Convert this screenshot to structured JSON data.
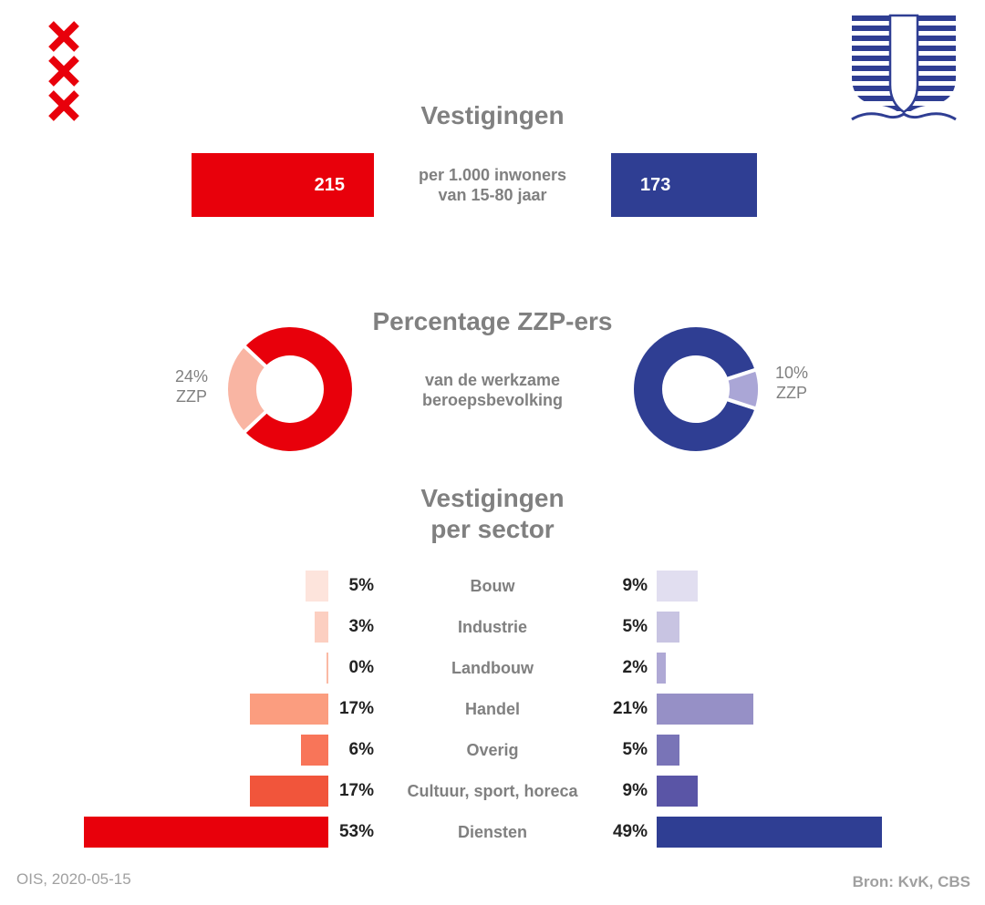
{
  "logos": {
    "left": {
      "name": "amsterdam-crosses",
      "color": "#e8000b"
    },
    "right": {
      "name": "leiden-shield-waves",
      "color": "#2f3e93"
    }
  },
  "colors": {
    "red": "#e8000b",
    "blue": "#2f3e93",
    "grey_text": "#808080"
  },
  "section1": {
    "title": "Vestigingen",
    "subtitle_line1": "per 1.000 inwoners",
    "subtitle_line2": "van 15-80 jaar",
    "left_value": "215",
    "right_value": "173"
  },
  "section2": {
    "title": "Percentage ZZP-ers",
    "subtitle_line1": "van de werkzame",
    "subtitle_line2": "beroepsbevolking",
    "left_pct_label": "24%",
    "left_zzp_label": "ZZP",
    "right_pct_label": "10%",
    "right_zzp_label": "ZZP"
  },
  "section3": {
    "title_line1": "Vestigingen",
    "title_line2": "per sector"
  },
  "chart_data": [
    {
      "type": "bar",
      "title": "Vestigingen",
      "categories": [
        "per 1.000 inwoners van 15-80 jaar"
      ],
      "series": [
        {
          "values": [
            215
          ],
          "color": "#e8000b"
        },
        {
          "values": [
            173
          ],
          "color": "#2f3e93"
        }
      ]
    },
    {
      "type": "pie",
      "title": "Percentage ZZP-ers",
      "donuts": [
        {
          "zzp_pct": 24,
          "color": "#e8000b",
          "zzp_color": "#f9b5a3"
        },
        {
          "zzp_pct": 10,
          "color": "#2f3e93",
          "zzp_color": "#aaa6d6"
        }
      ]
    },
    {
      "type": "bar",
      "title": "Vestigingen per sector",
      "categories": [
        "Bouw",
        "Industrie",
        "Landbouw",
        "Handel",
        "Overig",
        "Cultuur, sport, horeca",
        "Diensten"
      ],
      "series": [
        {
          "values": [
            5,
            3,
            0,
            17,
            6,
            17,
            53
          ]
        },
        {
          "values": [
            9,
            5,
            2,
            21,
            5,
            9,
            49
          ]
        }
      ],
      "value_labels_left": [
        "5%",
        "3%",
        "0%",
        "17%",
        "6%",
        "17%",
        "53%"
      ],
      "value_labels_right": [
        "9%",
        "5%",
        "2%",
        "21%",
        "5%",
        "9%",
        "49%"
      ],
      "colors_left": [
        "#fde4dc",
        "#fccfc1",
        "#fbbaa5",
        "#fb9d7f",
        "#f87559",
        "#f1553b",
        "#e8000b"
      ],
      "colors_right": [
        "#e1def0",
        "#c8c4e2",
        "#afa9d5",
        "#9690c6",
        "#7974b7",
        "#5a55a6",
        "#2f3e93"
      ]
    }
  ],
  "footer": {
    "left": "OIS, 2020-05-15",
    "right": "Bron: KvK, CBS"
  }
}
